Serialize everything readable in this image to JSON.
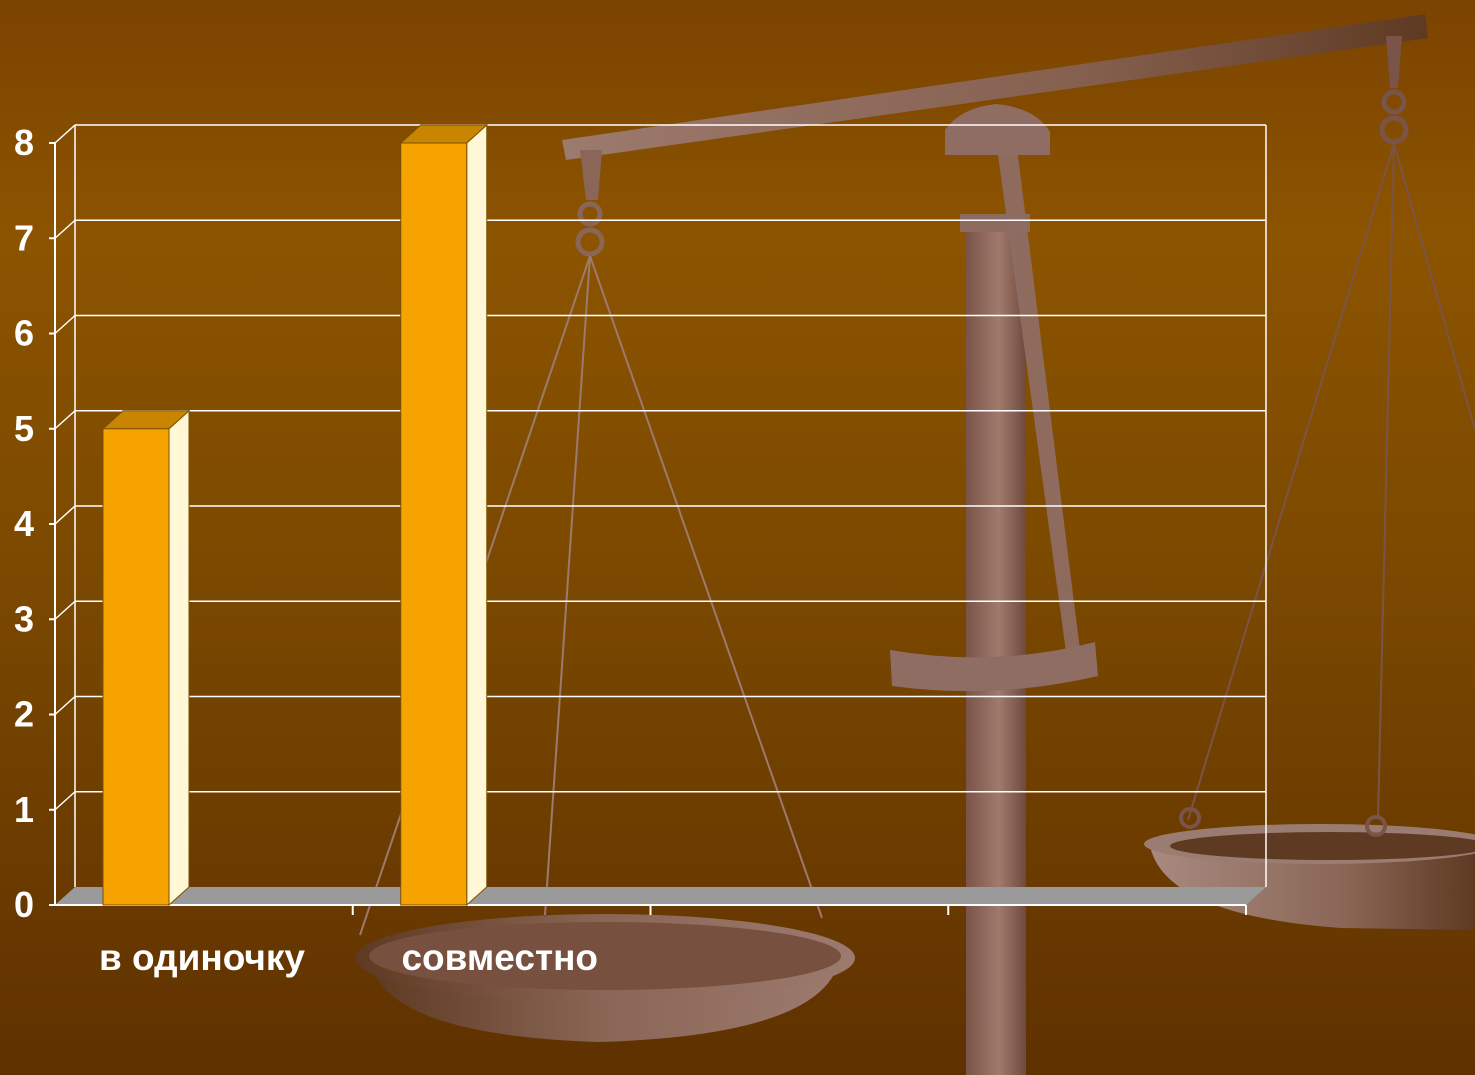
{
  "chart_data": {
    "type": "bar",
    "categories": [
      "в одиночку",
      "совместно"
    ],
    "values": [
      5,
      8
    ],
    "ylim": [
      0,
      8
    ],
    "yticks": [
      "0",
      "1",
      "2",
      "3",
      "4",
      "5",
      "6",
      "7",
      "8"
    ],
    "grid": true,
    "three_d": true,
    "legend": "none"
  },
  "colors": {
    "bar_front": "#f6a300",
    "bar_top": "#c98500",
    "bar_side": "#fff7d6",
    "floor": "#9a9a9a",
    "gridline": "#ffffff",
    "text": "#ffffff"
  },
  "background_image": "scales-of-justice"
}
